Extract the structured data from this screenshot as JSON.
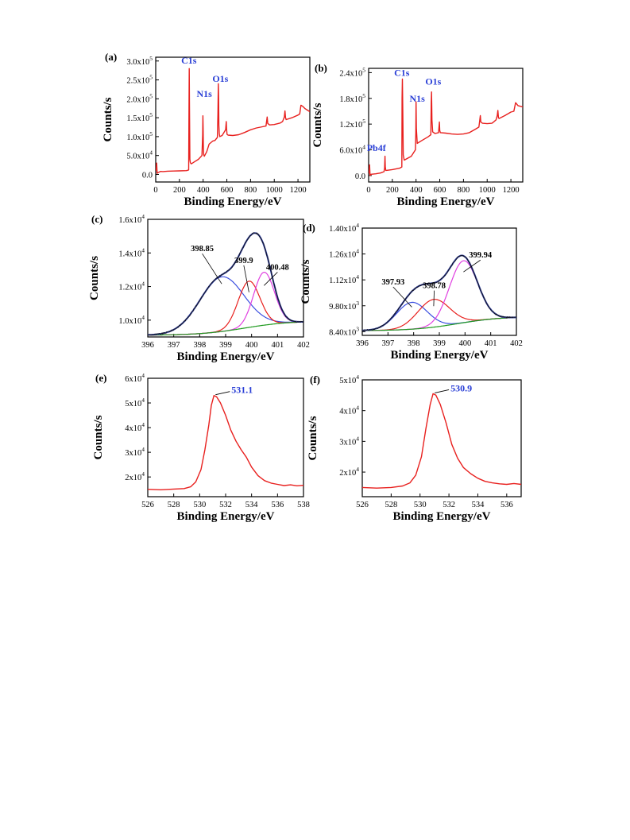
{
  "chart_data": [
    {
      "id": "a",
      "panel_label": "(a)",
      "type": "line",
      "xlabel": "Binding Energy/eV",
      "ylabel": "Counts/s",
      "xlim": [
        0,
        1300
      ],
      "ylim": [
        -20000,
        310000
      ],
      "x_ticks": [
        0,
        200,
        400,
        600,
        800,
        1000,
        1200
      ],
      "x_tick_labels": [
        "0",
        "200",
        "400",
        "600",
        "800",
        "1000",
        "1200"
      ],
      "y_ticks": [
        0,
        50000,
        100000,
        150000,
        200000,
        250000,
        300000
      ],
      "y_tick_labels": [
        {
          "base": "0.0",
          "exp": ""
        },
        {
          "base": "5.0x10",
          "exp": "4"
        },
        {
          "base": "1.0x10",
          "exp": "5"
        },
        {
          "base": "1.5x10",
          "exp": "5"
        },
        {
          "base": "2.0x10",
          "exp": "5"
        },
        {
          "base": "2.5x10",
          "exp": "5"
        },
        {
          "base": "3.0x10",
          "exp": "5"
        }
      ],
      "series": [
        {
          "color": "#e8201e",
          "x": [
            0,
            5,
            8,
            12,
            20,
            40,
            60,
            100,
            150,
            200,
            260,
            278,
            280,
            283,
            285,
            288,
            292,
            300,
            330,
            360,
            390,
            396,
            398,
            400,
            402,
            405,
            410,
            430,
            450,
            480,
            500,
            520,
            525,
            528,
            531,
            533,
            536,
            540,
            560,
            590,
            595,
            598,
            602,
            610,
            650,
            700,
            750,
            800,
            850,
            900,
            930,
            940,
            945,
            960,
            1000,
            1050,
            1070,
            1085,
            1090,
            1095,
            1100,
            1150,
            1200,
            1215,
            1225,
            1240,
            1260,
            1280,
            1300
          ],
          "y": [
            10000,
            14000,
            30000,
            3000,
            5000,
            8000,
            7500,
            8500,
            9000,
            9500,
            10000,
            12000,
            140000,
            280000,
            180000,
            40000,
            31000,
            28000,
            34000,
            40000,
            50000,
            105000,
            155000,
            120000,
            70000,
            52000,
            48000,
            60000,
            80000,
            88000,
            90000,
            98000,
            160000,
            240000,
            200000,
            130000,
            108000,
            100000,
            103000,
            118000,
            140000,
            120000,
            106000,
            104000,
            103000,
            105000,
            111000,
            118000,
            123000,
            126000,
            128000,
            152000,
            135000,
            131000,
            132000,
            136000,
            140000,
            152000,
            168000,
            150000,
            145000,
            150000,
            157000,
            160000,
            183000,
            180000,
            174000,
            170000,
            166000
          ]
        }
      ],
      "annotations": [
        {
          "text": "C1s",
          "x": 280,
          "y": 293000
        },
        {
          "text": "N1s",
          "x": 410,
          "y": 205000
        },
        {
          "text": "O1s",
          "x": 545,
          "y": 245000
        }
      ]
    },
    {
      "id": "b",
      "panel_label": "(b)",
      "type": "line",
      "xlabel": "Binding Energy/eV",
      "ylabel": "Counts/s",
      "xlim": [
        0,
        1300
      ],
      "ylim": [
        -15000,
        250000
      ],
      "x_ticks": [
        0,
        200,
        400,
        600,
        800,
        1000,
        1200
      ],
      "x_tick_labels": [
        "0",
        "200",
        "400",
        "600",
        "800",
        "1000",
        "1200"
      ],
      "y_ticks": [
        0,
        60000,
        120000,
        180000,
        240000
      ],
      "y_tick_labels": [
        {
          "base": "0.0",
          "exp": ""
        },
        {
          "base": "6.0x10",
          "exp": "4"
        },
        {
          "base": "1.2x10",
          "exp": "5"
        },
        {
          "base": "1.8x10",
          "exp": "5"
        },
        {
          "base": "2.4x10",
          "exp": "5"
        }
      ],
      "series": [
        {
          "color": "#e8201e",
          "x": [
            0,
            5,
            8,
            12,
            20,
            60,
            100,
            130,
            135,
            138,
            141,
            145,
            150,
            200,
            260,
            280,
            282,
            285,
            288,
            292,
            300,
            360,
            395,
            398,
            400,
            403,
            410,
            450,
            500,
            525,
            528,
            531,
            534,
            540,
            560,
            590,
            597,
            600,
            605,
            650,
            700,
            750,
            800,
            850,
            900,
            930,
            942,
            946,
            960,
            1000,
            1040,
            1050,
            1075,
            1085,
            1090,
            1095,
            1100,
            1150,
            1200,
            1225,
            1240,
            1260,
            1300
          ],
          "y": [
            5000,
            8000,
            25000,
            0,
            3000,
            4000,
            6000,
            9000,
            18000,
            45000,
            20000,
            12000,
            12000,
            14000,
            17000,
            20000,
            180000,
            225000,
            150000,
            48000,
            36000,
            45000,
            60000,
            100000,
            172000,
            110000,
            75000,
            82000,
            90000,
            95000,
            170000,
            195000,
            130000,
            102000,
            98000,
            100000,
            125000,
            105000,
            100000,
            99000,
            97000,
            96000,
            97000,
            100000,
            108000,
            113000,
            140000,
            125000,
            122000,
            121000,
            122000,
            124000,
            130000,
            140000,
            152000,
            135000,
            133000,
            140000,
            148000,
            150000,
            170000,
            163000,
            160000
          ]
        }
      ],
      "annotations": [
        {
          "text": "C1s",
          "x": 280,
          "y": 232000
        },
        {
          "text": "N1s",
          "x": 410,
          "y": 172000
        },
        {
          "text": "O1s",
          "x": 545,
          "y": 212000
        },
        {
          "text": "Pb4f",
          "x": 65,
          "y": 57000
        }
      ]
    },
    {
      "id": "c",
      "panel_label": "(c)",
      "type": "line",
      "xlabel": "Binding Energy/eV",
      "ylabel": "Counts/s",
      "xlim": [
        396,
        402
      ],
      "ylim": [
        9000,
        16000
      ],
      "x_ticks": [
        396,
        397,
        398,
        399,
        400,
        401,
        402
      ],
      "x_tick_labels": [
        "396",
        "397",
        "398",
        "399",
        "400",
        "401",
        "402"
      ],
      "y_ticks": [
        10000,
        12000,
        14000,
        16000
      ],
      "y_tick_labels": [
        {
          "base": "1.0x10",
          "exp": "4"
        },
        {
          "base": "1.2x10",
          "exp": "4"
        },
        {
          "base": "1.4x10",
          "exp": "4"
        },
        {
          "base": "1.6x10",
          "exp": "4"
        }
      ],
      "background": {
        "x0": 396,
        "x1": 402,
        "y0": 9100,
        "y1": 9950
      },
      "components": [
        {
          "center": 398.85,
          "height": 3250,
          "sigma": 0.85,
          "color": "#3b4fe0"
        },
        {
          "center": 399.9,
          "height": 2750,
          "sigma": 0.42,
          "color": "#e8201e"
        },
        {
          "center": 400.48,
          "height": 3150,
          "sigma": 0.4,
          "color": "#e040e0"
        }
      ],
      "envelope_color": "#2b3a9a",
      "background_color": "#1f9a1f",
      "annotations": [
        {
          "text": "398.85",
          "x": 398.1,
          "y": 14100
        },
        {
          "text": "399.9",
          "x": 399.7,
          "y": 13400
        },
        {
          "text": "400.48",
          "x": 401.0,
          "y": 13000
        }
      ]
    },
    {
      "id": "d",
      "panel_label": "(d)",
      "type": "line",
      "xlabel": "Binding Energy/eV",
      "ylabel": "Counts/s",
      "xlim": [
        396,
        402
      ],
      "ylim": [
        8200,
        14000
      ],
      "x_ticks": [
        396,
        397,
        398,
        399,
        400,
        401,
        402
      ],
      "x_tick_labels": [
        "396",
        "397",
        "398",
        "399",
        "400",
        "401",
        "402"
      ],
      "y_ticks": [
        8400,
        9800,
        11200,
        12600,
        14000
      ],
      "y_tick_labels": [
        {
          "base": "8.40x10",
          "exp": "3"
        },
        {
          "base": "9.80x10",
          "exp": "3"
        },
        {
          "base": "1.12x10",
          "exp": "4"
        },
        {
          "base": "1.26x10",
          "exp": "4"
        },
        {
          "base": "1.40x10",
          "exp": "4"
        }
      ],
      "background": {
        "x0": 396,
        "x1": 402,
        "y0": 8450,
        "y1": 9220
      },
      "components": [
        {
          "center": 397.93,
          "height": 1450,
          "sigma": 0.6,
          "color": "#3b4fe0"
        },
        {
          "center": 398.78,
          "height": 1500,
          "sigma": 0.62,
          "color": "#e8201e"
        },
        {
          "center": 399.94,
          "height": 3350,
          "sigma": 0.55,
          "color": "#e040e0"
        }
      ],
      "envelope_color": "#2b3a9a",
      "background_color": "#1f9a1f",
      "annotations": [
        {
          "text": "397.93",
          "x": 397.2,
          "y": 10950
        },
        {
          "text": "398.78",
          "x": 398.8,
          "y": 10750
        },
        {
          "text": "399.94",
          "x": 400.6,
          "y": 12400
        }
      ]
    },
    {
      "id": "e",
      "panel_label": "(e)",
      "type": "line",
      "xlabel": "Binding Energy/eV",
      "ylabel": "Counts/s",
      "xlim": [
        526,
        538
      ],
      "ylim": [
        12000,
        60000
      ],
      "x_ticks": [
        526,
        528,
        530,
        532,
        534,
        536,
        538
      ],
      "x_tick_labels": [
        "526",
        "528",
        "530",
        "532",
        "534",
        "536",
        "538"
      ],
      "y_ticks": [
        20000,
        30000,
        40000,
        50000,
        60000
      ],
      "y_tick_labels": [
        {
          "base": "2x10",
          "exp": "4"
        },
        {
          "base": "3x10",
          "exp": "4"
        },
        {
          "base": "4x10",
          "exp": "4"
        },
        {
          "base": "5x10",
          "exp": "4"
        },
        {
          "base": "6x10",
          "exp": "4"
        }
      ],
      "series": [
        {
          "color": "#e8201e",
          "x": [
            526,
            527,
            528,
            528.8,
            529.3,
            529.7,
            530.1,
            530.4,
            530.7,
            530.9,
            531.1,
            531.3,
            531.6,
            532,
            532.4,
            532.8,
            533.2,
            533.6,
            534,
            534.5,
            535,
            535.5,
            536,
            536.5,
            537,
            537.5,
            538
          ],
          "y": [
            15000,
            14800,
            15100,
            15300,
            16000,
            18000,
            23000,
            31000,
            41000,
            49000,
            53000,
            52500,
            50000,
            45000,
            39000,
            34500,
            31000,
            28000,
            24000,
            20500,
            18500,
            17500,
            17000,
            16500,
            16800,
            16400,
            16600
          ]
        }
      ],
      "peak_label": {
        "text": "531.1",
        "x": 531.1,
        "y": 53000
      }
    },
    {
      "id": "f",
      "panel_label": "(f)",
      "type": "line",
      "xlabel": "Binding Energy/eV",
      "ylabel": "Counts/s",
      "xlim": [
        526,
        537
      ],
      "ylim": [
        12000,
        50000
      ],
      "x_ticks": [
        526,
        528,
        530,
        532,
        534,
        536
      ],
      "x_tick_labels": [
        "526",
        "528",
        "530",
        "532",
        "534",
        "536"
      ],
      "y_ticks": [
        20000,
        30000,
        40000,
        50000
      ],
      "y_tick_labels": [
        {
          "base": "2x10",
          "exp": "4"
        },
        {
          "base": "3x10",
          "exp": "4"
        },
        {
          "base": "4x10",
          "exp": "4"
        },
        {
          "base": "5x10",
          "exp": "4"
        }
      ],
      "series": [
        {
          "color": "#e8201e",
          "x": [
            526,
            527,
            528,
            528.8,
            529.3,
            529.7,
            530.1,
            530.4,
            530.7,
            530.9,
            531.1,
            531.4,
            531.8,
            532.2,
            532.6,
            533,
            533.5,
            534,
            534.5,
            535,
            535.5,
            536,
            536.5,
            537
          ],
          "y": [
            15000,
            14800,
            15000,
            15500,
            16500,
            19000,
            25000,
            34000,
            42000,
            45500,
            45000,
            42000,
            36000,
            29000,
            24500,
            21500,
            19500,
            18000,
            17000,
            16500,
            16200,
            16000,
            16300,
            16000
          ]
        }
      ],
      "peak_label": {
        "text": "530.9",
        "x": 530.9,
        "y": 45500
      }
    }
  ]
}
